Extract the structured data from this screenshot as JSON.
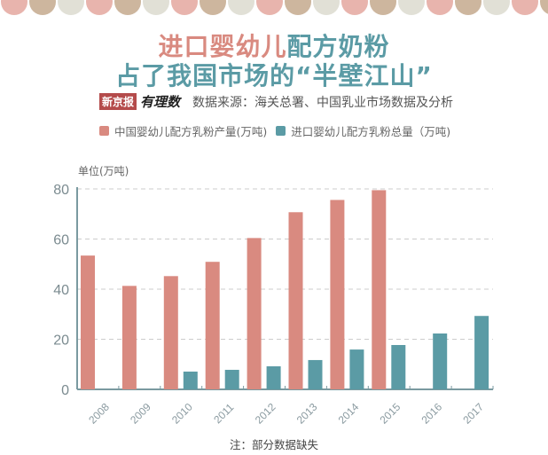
{
  "header": {
    "title_line1_part1": "进口婴幼儿",
    "title_line1_part2": "配方奶粉",
    "title_line2": "占了我国市场的“半壁江山”",
    "logo_text": "新京报",
    "logo_brand": "有理数",
    "source": "数据来源：海关总署、中国乳业市场数据及分析"
  },
  "colors": {
    "domestic": "#d98a80",
    "imported": "#5b9ba5",
    "axis": "#7a9aa0",
    "grid": "#cccccc",
    "scallops": [
      "#e8b4ad",
      "#cdb69e",
      "#e1e0d6"
    ]
  },
  "legend": [
    {
      "label": "中国婴幼儿配方乳粉产量(万吨)",
      "color": "#d98a80"
    },
    {
      "label": "进口婴幼儿配方乳粉总量（万吨)",
      "color": "#5b9ba5"
    }
  ],
  "unit_label": "单位(万吨)",
  "note": "注：部分数据缺失",
  "chart_data": {
    "type": "bar",
    "title": "进口婴幼儿配方奶粉占了我国市场的“半壁江山”",
    "xlabel": "",
    "ylabel": "单位(万吨)",
    "ylim": [
      0,
      80
    ],
    "yticks": [
      0,
      20,
      40,
      60,
      80
    ],
    "grid": true,
    "legend_position": "top",
    "categories": [
      "2008",
      "2009",
      "2010",
      "2011",
      "2012",
      "2013",
      "2014",
      "2015",
      "2016",
      "2017"
    ],
    "series": [
      {
        "name": "中国婴幼儿配方乳粉产量(万吨)",
        "values": [
          53.4,
          41.3,
          45.2,
          50.9,
          60.4,
          70.7,
          75.6,
          79.5,
          null,
          null
        ]
      },
      {
        "name": "进口婴幼儿配方乳粉总量（万吨)",
        "values": [
          null,
          null,
          7.1,
          7.8,
          9.2,
          11.7,
          15.9,
          17.7,
          22.3,
          29.3
        ]
      }
    ]
  }
}
